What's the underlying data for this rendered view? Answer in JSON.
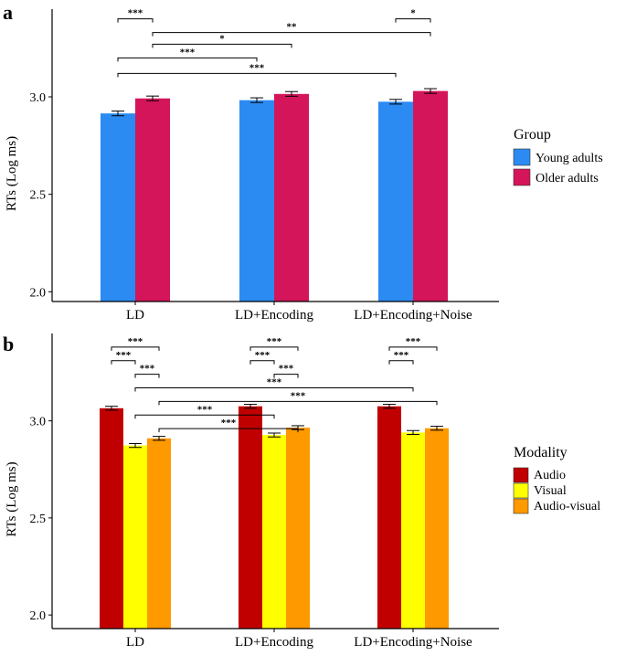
{
  "chart_data": [
    {
      "panel": "a",
      "type": "bar",
      "ylabel": "RTs (Log ms)",
      "xlabel": "",
      "ylim": [
        1.95,
        3.45
      ],
      "yticks": [
        "2.0",
        "2.5",
        "3.0"
      ],
      "categories": [
        "LD",
        "LD+Encoding",
        "LD+Encoding+Noise"
      ],
      "legend_title": "Group",
      "legend_position": "right",
      "series": [
        {
          "name": "Young adults",
          "color": "#2b8bf2",
          "values": [
            2.915,
            2.983,
            2.975
          ],
          "errors": [
            0.012,
            0.012,
            0.012
          ]
        },
        {
          "name": "Older adults",
          "color": "#d4155a",
          "values": [
            2.992,
            3.015,
            3.03
          ],
          "errors": [
            0.012,
            0.012,
            0.012
          ]
        }
      ],
      "significance": [
        {
          "from": [
            0,
            0
          ],
          "to": [
            0,
            1
          ],
          "y": 3.4,
          "label": "***"
        },
        {
          "from": [
            2,
            0
          ],
          "to": [
            2,
            1
          ],
          "y": 3.4,
          "label": "*"
        },
        {
          "from": [
            0,
            1
          ],
          "to": [
            2,
            1
          ],
          "y": 3.33,
          "label": "**"
        },
        {
          "from": [
            0,
            1
          ],
          "to": [
            1,
            1
          ],
          "y": 3.27,
          "label": "*"
        },
        {
          "from": [
            0,
            0
          ],
          "to": [
            1,
            0
          ],
          "y": 3.2,
          "label": "***"
        },
        {
          "from": [
            0,
            0
          ],
          "to": [
            2,
            0
          ],
          "y": 3.12,
          "label": "***"
        }
      ]
    },
    {
      "panel": "b",
      "type": "bar",
      "ylabel": "RTs (Log ms)",
      "xlabel": "",
      "ylim": [
        1.93,
        3.45
      ],
      "yticks": [
        "2.0",
        "2.5",
        "3.0"
      ],
      "categories": [
        "LD",
        "LD+Encoding",
        "LD+Encoding+Noise"
      ],
      "legend_title": "Modality",
      "legend_position": "right",
      "series": [
        {
          "name": "Audio",
          "color": "#c00000",
          "values": [
            3.065,
            3.075,
            3.075
          ],
          "errors": [
            0.01,
            0.01,
            0.01
          ]
        },
        {
          "name": "Visual",
          "color": "#ffff00",
          "values": [
            2.873,
            2.927,
            2.94
          ],
          "errors": [
            0.01,
            0.01,
            0.01
          ]
        },
        {
          "name": "Audio-visual",
          "color": "#ff9900",
          "values": [
            2.91,
            2.965,
            2.962
          ],
          "errors": [
            0.01,
            0.01,
            0.01
          ]
        }
      ],
      "significance": [
        {
          "from": [
            0,
            0
          ],
          "to": [
            0,
            2
          ],
          "y": 3.38,
          "label": "***"
        },
        {
          "from": [
            1,
            0
          ],
          "to": [
            1,
            2
          ],
          "y": 3.38,
          "label": "***"
        },
        {
          "from": [
            2,
            0
          ],
          "to": [
            2,
            2
          ],
          "y": 3.38,
          "label": "***"
        },
        {
          "from": [
            0,
            0
          ],
          "to": [
            0,
            1
          ],
          "y": 3.31,
          "label": "***"
        },
        {
          "from": [
            1,
            0
          ],
          "to": [
            1,
            1
          ],
          "y": 3.31,
          "label": "***"
        },
        {
          "from": [
            2,
            0
          ],
          "to": [
            2,
            1
          ],
          "y": 3.31,
          "label": "***"
        },
        {
          "from": [
            0,
            1
          ],
          "to": [
            0,
            2
          ],
          "y": 3.24,
          "label": "***"
        },
        {
          "from": [
            1,
            1
          ],
          "to": [
            1,
            2
          ],
          "y": 3.24,
          "label": "***"
        },
        {
          "from": [
            0,
            1
          ],
          "to": [
            2,
            1
          ],
          "y": 3.17,
          "label": "***"
        },
        {
          "from": [
            0,
            2
          ],
          "to": [
            2,
            2
          ],
          "y": 3.1,
          "label": "***"
        },
        {
          "from": [
            0,
            1
          ],
          "to": [
            1,
            1
          ],
          "y": 3.03,
          "label": "***"
        },
        {
          "from": [
            0,
            2
          ],
          "to": [
            1,
            2
          ],
          "y": 2.96,
          "label": "***"
        }
      ]
    }
  ]
}
